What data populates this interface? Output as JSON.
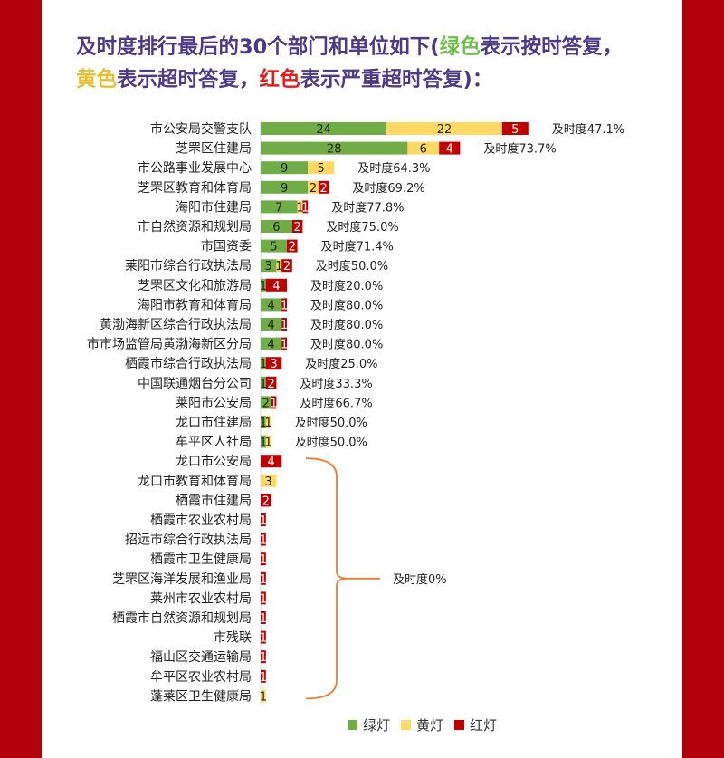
{
  "title": {
    "part1": "及时度排行最后的30个部门和单位如下(",
    "green_word": "绿色",
    "part2": "表示按时答复，",
    "yellow_word": "黄色",
    "part3": "表示超时答复，",
    "red_word": "红色",
    "part4": "表示严重超时答复)："
  },
  "colors": {
    "green": "#70ad47",
    "yellow": "#ffd966",
    "red": "#c00000",
    "border": "#b3000d",
    "brace": "#ed7d31",
    "title": "#4b3a86"
  },
  "chart_data": {
    "type": "bar",
    "orientation": "horizontal",
    "stacked": true,
    "categories": [
      "市公安局交警支队",
      "芝罘区住建局",
      "市公路事业发展中心",
      "芝罘区教育和体育局",
      "海阳市住建局",
      "市自然资源和规划局",
      "市国资委",
      "莱阳市综合行政执法局",
      "芝罘区文化和旅游局",
      "海阳市教育和体育局",
      "黄渤海新区综合行政执法局",
      "市市场监管局黄渤海新区分局",
      "栖霞市综合行政执法局",
      "中国联通烟台分公司",
      "莱阳市公安局",
      "龙口市住建局",
      "牟平区人社局",
      "龙口市公安局",
      "龙口市教育和体育局",
      "栖霞市住建局",
      "栖霞市农业农村局",
      "招远市综合行政执法局",
      "栖霞市卫生健康局",
      "芝罘区海洋发展和渔业局",
      "莱州市农业农村局",
      "栖霞市自然资源和规划局",
      "市残联",
      "福山区交通运输局",
      "牟平区农业农村局",
      "蓬莱区卫生健康局"
    ],
    "series": [
      {
        "name": "绿灯",
        "values": [
          24,
          28,
          9,
          9,
          7,
          6,
          5,
          3,
          1,
          4,
          4,
          4,
          1,
          1,
          2,
          1,
          1,
          0,
          0,
          0,
          0,
          0,
          0,
          0,
          0,
          0,
          0,
          0,
          0,
          0
        ]
      },
      {
        "name": "黄灯",
        "values": [
          22,
          6,
          5,
          2,
          1,
          0,
          0,
          1,
          0,
          0,
          0,
          0,
          0,
          0,
          0,
          1,
          1,
          0,
          3,
          0,
          0,
          0,
          0,
          0,
          0,
          0,
          0,
          0,
          0,
          1
        ]
      },
      {
        "name": "红灯",
        "values": [
          5,
          4,
          0,
          2,
          1,
          2,
          2,
          2,
          4,
          1,
          1,
          1,
          3,
          2,
          1,
          0,
          0,
          4,
          0,
          2,
          1,
          1,
          1,
          1,
          1,
          1,
          1,
          1,
          1,
          0
        ]
      }
    ],
    "annotations": [
      "及时度47.1%",
      "及时度73.7%",
      "及时度64.3%",
      "及时度69.2%",
      "及时度77.8%",
      "及时度75.0%",
      "及时度71.4%",
      "及时度50.0%",
      "及时度20.0%",
      "及时度80.0%",
      "及时度80.0%",
      "及时度80.0%",
      "及时度25.0%",
      "及时度33.3%",
      "及时度66.7%",
      "及时度50.0%",
      "及时度50.0%"
    ],
    "group_annotation": "及时度0%",
    "legend": [
      "绿灯",
      "黄灯",
      "红灯"
    ],
    "legend_position": "bottom"
  }
}
